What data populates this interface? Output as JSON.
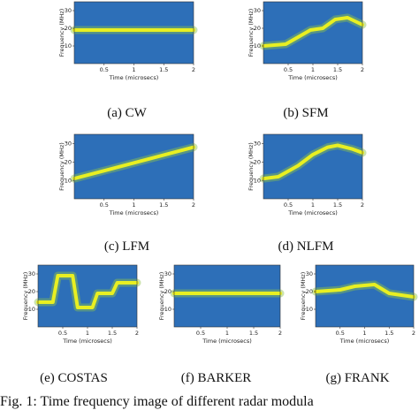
{
  "figure_caption": "Fig. 1: Time frequency image of different radar modula",
  "colors": {
    "background": "#2d6fb8",
    "ridge": "#e8ef22"
  },
  "chart_data": [
    {
      "type": "heatmap",
      "title": "(a) CW",
      "label": "(a) CW",
      "shape": "const",
      "xlabel": "Time (microsecs)",
      "ylabel": "Frequency (MHz)",
      "xticks": [
        "0.5",
        "1",
        "1.5",
        "2"
      ],
      "yticks": [
        "10",
        "20",
        "30"
      ],
      "xlim": [
        0,
        2
      ],
      "ylim": [
        0,
        35
      ],
      "x": [
        0,
        2
      ],
      "y": [
        19,
        19
      ]
    },
    {
      "type": "heatmap",
      "title": "(b) SFM",
      "label": "(b) SFM",
      "shape": "steps",
      "xlabel": "Time (microsecs)",
      "ylabel": "Frequency (MHz)",
      "xticks": [
        "0.5",
        "1",
        "1.5",
        "2"
      ],
      "yticks": [
        "10",
        "20",
        "30"
      ],
      "xlim": [
        0,
        2
      ],
      "ylim": [
        0,
        35
      ],
      "x": [
        0,
        0.45,
        0.7,
        0.95,
        1.2,
        1.45,
        1.7,
        2
      ],
      "y": [
        10,
        11,
        15,
        19,
        20,
        25,
        26,
        22
      ]
    },
    {
      "type": "heatmap",
      "title": "(c) LFM",
      "label": "(c) LFM",
      "shape": "linear",
      "xlabel": "Time (microsecs)",
      "ylabel": "Frequency (MHz)",
      "xticks": [
        "0.5",
        "1",
        "1.5",
        "2"
      ],
      "yticks": [
        "10",
        "20",
        "30"
      ],
      "xlim": [
        0,
        2
      ],
      "ylim": [
        0,
        35
      ],
      "x": [
        0,
        2
      ],
      "y": [
        11,
        28
      ]
    },
    {
      "type": "heatmap",
      "title": "(d) NLFM",
      "label": "(d) NLFM",
      "shape": "sine",
      "xlabel": "Time (microsecs)",
      "ylabel": "Frequency (MHz)",
      "xticks": [
        "0.5",
        "1",
        "1.5",
        "2"
      ],
      "yticks": [
        "10",
        "20",
        "30"
      ],
      "xlim": [
        0,
        2
      ],
      "ylim": [
        0,
        35
      ],
      "x": [
        0,
        0.3,
        0.7,
        1.0,
        1.3,
        1.5,
        1.8,
        2
      ],
      "y": [
        11,
        12,
        18,
        24,
        28,
        29,
        27,
        25
      ]
    },
    {
      "type": "heatmap",
      "title": "(e) COSTAS",
      "label": "(e) COSTAS",
      "shape": "steps",
      "xlabel": "Time (microsecs)",
      "ylabel": "Frequency (MHz)",
      "xticks": [
        "0.5",
        "1",
        "1.5",
        "2"
      ],
      "yticks": [
        "10",
        "20",
        "30"
      ],
      "xlim": [
        0,
        2
      ],
      "ylim": [
        0,
        35
      ],
      "x": [
        0,
        0.3,
        0.4,
        0.7,
        0.8,
        1.1,
        1.2,
        1.5,
        1.6,
        2
      ],
      "y": [
        14,
        14,
        29,
        29,
        11,
        11,
        19,
        19,
        25,
        25
      ]
    },
    {
      "type": "heatmap",
      "title": "(f) BARKER",
      "label": "(f) BARKER",
      "shape": "const",
      "xlabel": "Time (microsecs)",
      "ylabel": "Frequency (MHz)",
      "xticks": [
        "0.5",
        "1",
        "1.5",
        "2"
      ],
      "yticks": [
        "10",
        "20",
        "30"
      ],
      "xlim": [
        0,
        2
      ],
      "ylim": [
        0,
        35
      ],
      "x": [
        0,
        2
      ],
      "y": [
        19,
        19
      ]
    },
    {
      "type": "heatmap",
      "title": "(g) FRANK",
      "label": "(g) FRANK",
      "shape": "steps",
      "xlabel": "Time (microsecs)",
      "ylabel": "Frequency (MHz)",
      "xticks": [
        "0.5",
        "1",
        "1.5",
        "2"
      ],
      "yticks": [
        "10",
        "20",
        "30"
      ],
      "xlim": [
        0,
        2
      ],
      "ylim": [
        0,
        35
      ],
      "x": [
        0,
        0.5,
        0.8,
        1.2,
        1.5,
        2
      ],
      "y": [
        20,
        21,
        23,
        24,
        19,
        17
      ]
    }
  ]
}
